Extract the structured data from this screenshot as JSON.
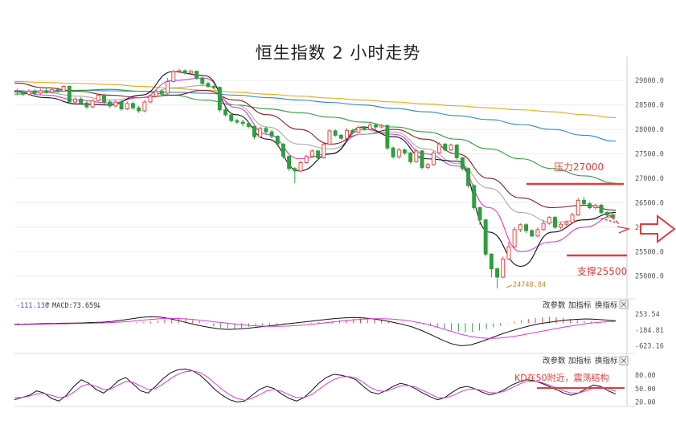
{
  "title": "恒生指数 2 小时走势",
  "chart_data": {
    "type": "candlestick",
    "title": "恒生指数 2 小时走势",
    "main_axis": {
      "ylim": [
        24700,
        29250
      ],
      "ticks": [
        "29000.0",
        "28500.0",
        "28000.0",
        "27500.0",
        "27000.0",
        "26500.0",
        "26000.0",
        "25500.0",
        "25000.0"
      ]
    },
    "candles": [
      [
        28780,
        28760,
        28830,
        28700
      ],
      [
        28760,
        28720,
        28800,
        28680
      ],
      [
        28720,
        28780,
        28820,
        28690
      ],
      [
        28780,
        28740,
        28820,
        28700
      ],
      [
        28740,
        28790,
        28830,
        28710
      ],
      [
        28790,
        28760,
        28840,
        28730
      ],
      [
        28760,
        28810,
        28850,
        28740
      ],
      [
        28810,
        28780,
        28860,
        28750
      ],
      [
        28780,
        28880,
        28900,
        28760
      ],
      [
        28880,
        28560,
        28900,
        28520
      ],
      [
        28560,
        28620,
        28660,
        28500
      ],
      [
        28620,
        28540,
        28660,
        28500
      ],
      [
        28540,
        28460,
        28580,
        28420
      ],
      [
        28460,
        28590,
        28620,
        28430
      ],
      [
        28590,
        28700,
        28730,
        28570
      ],
      [
        28700,
        28560,
        28730,
        28520
      ],
      [
        28560,
        28480,
        28600,
        28440
      ],
      [
        28480,
        28560,
        28600,
        28450
      ],
      [
        28560,
        28420,
        28600,
        28380
      ],
      [
        28420,
        28530,
        28570,
        28390
      ],
      [
        28530,
        28440,
        28570,
        28400
      ],
      [
        28440,
        28380,
        28480,
        28340
      ],
      [
        28380,
        28560,
        28600,
        28350
      ],
      [
        28560,
        28680,
        28720,
        28540
      ],
      [
        28680,
        28780,
        28820,
        28660
      ],
      [
        28780,
        28740,
        28820,
        28700
      ],
      [
        28740,
        28980,
        29050,
        28720
      ],
      [
        28980,
        29180,
        29220,
        28960
      ],
      [
        29180,
        29200,
        29240,
        29150
      ],
      [
        29200,
        29150,
        29230,
        29120
      ],
      [
        29150,
        29190,
        29220,
        29120
      ],
      [
        29190,
        29050,
        29200,
        29020
      ],
      [
        29050,
        28940,
        29080,
        28900
      ],
      [
        28940,
        28880,
        28980,
        28850
      ],
      [
        28880,
        28860,
        28920,
        28820
      ],
      [
        28860,
        28400,
        28880,
        28350
      ],
      [
        28400,
        28300,
        28440,
        28260
      ],
      [
        28300,
        28180,
        28340,
        28140
      ],
      [
        28180,
        28150,
        28220,
        28110
      ],
      [
        28150,
        28120,
        28200,
        28060
      ],
      [
        28120,
        28060,
        28160,
        28020
      ],
      [
        28060,
        27850,
        28080,
        27800
      ],
      [
        27850,
        28020,
        28060,
        27820
      ],
      [
        28020,
        27950,
        28060,
        27910
      ],
      [
        27950,
        27860,
        27990,
        27820
      ],
      [
        27860,
        27700,
        27880,
        27650
      ],
      [
        27700,
        27450,
        27720,
        27400
      ],
      [
        27450,
        27200,
        27470,
        27150
      ],
      [
        27200,
        27150,
        27230,
        26900
      ],
      [
        27150,
        27320,
        27360,
        27120
      ],
      [
        27320,
        27450,
        27480,
        27300
      ],
      [
        27450,
        27560,
        27590,
        27430
      ],
      [
        27560,
        27420,
        27580,
        27380
      ],
      [
        27420,
        27700,
        27740,
        27400
      ],
      [
        27700,
        27970,
        28000,
        27680
      ],
      [
        27970,
        27880,
        28000,
        27850
      ],
      [
        27880,
        27820,
        27910,
        27780
      ],
      [
        27820,
        27980,
        28020,
        27800
      ],
      [
        27980,
        27940,
        28020,
        27900
      ],
      [
        27940,
        28040,
        28080,
        27920
      ],
      [
        28040,
        28000,
        28070,
        27970
      ],
      [
        28000,
        28090,
        28130,
        27980
      ],
      [
        28090,
        28050,
        28120,
        28010
      ],
      [
        28050,
        28080,
        28110,
        28020
      ],
      [
        28080,
        27620,
        28100,
        27580
      ],
      [
        27620,
        27440,
        27650,
        27400
      ],
      [
        27440,
        27580,
        27620,
        27400
      ],
      [
        27580,
        27520,
        27610,
        27480
      ],
      [
        27520,
        27340,
        27540,
        27300
      ],
      [
        27340,
        27560,
        27600,
        27320
      ],
      [
        27560,
        27220,
        27580,
        27180
      ],
      [
        27220,
        27280,
        27320,
        27180
      ],
      [
        27280,
        27520,
        27560,
        27260
      ],
      [
        27520,
        27700,
        27740,
        27500
      ],
      [
        27700,
        27580,
        27720,
        27550
      ],
      [
        27580,
        27680,
        27710,
        27560
      ],
      [
        27680,
        27420,
        27700,
        27380
      ],
      [
        27420,
        27200,
        27440,
        27160
      ],
      [
        27200,
        26850,
        27220,
        26800
      ],
      [
        26850,
        26400,
        26880,
        26350
      ],
      [
        26400,
        26150,
        26420,
        26050
      ],
      [
        26150,
        25450,
        26170,
        25400
      ],
      [
        25450,
        25150,
        25470,
        24980
      ],
      [
        25150,
        24980,
        25170,
        24748
      ],
      [
        24980,
        25350,
        25400,
        24960
      ],
      [
        25350,
        25600,
        25700,
        25330
      ],
      [
        25600,
        25950,
        26000,
        25570
      ],
      [
        25950,
        26050,
        26080,
        25900
      ],
      [
        26050,
        25930,
        26080,
        25880
      ],
      [
        25930,
        25820,
        25960,
        25800
      ],
      [
        25820,
        25950,
        26000,
        25790
      ],
      [
        25950,
        26080,
        26150,
        25930
      ],
      [
        26080,
        26200,
        26230,
        26050
      ],
      [
        26200,
        26000,
        26230,
        25970
      ],
      [
        26000,
        26060,
        26100,
        25960
      ],
      [
        26060,
        26100,
        26140,
        26020
      ],
      [
        26100,
        26250,
        26300,
        26080
      ],
      [
        26250,
        26550,
        26600,
        26230
      ],
      [
        26550,
        26480,
        26620,
        26440
      ],
      [
        26480,
        26400,
        26520,
        26370
      ],
      [
        26400,
        26450,
        26480,
        26360
      ],
      [
        26450,
        26300,
        26480,
        26260
      ],
      [
        26300,
        26250,
        26330,
        26200
      ],
      [
        26250,
        26200,
        26290,
        26160
      ]
    ],
    "ma_lines": [
      {
        "name": "MA-yellow",
        "color": "#e8a816",
        "values": [
          28980,
          28960,
          28940,
          28920,
          28880,
          28840,
          28800,
          28760,
          28720,
          28680,
          28640,
          28600,
          28560,
          28520,
          28480,
          28440,
          28400,
          28360,
          28300,
          28240
        ]
      },
      {
        "name": "MA-blue",
        "color": "#2e86de",
        "values": [
          28780,
          28790,
          28800,
          28790,
          28780,
          28760,
          28740,
          28700,
          28650,
          28600,
          28550,
          28500,
          28430,
          28360,
          28280,
          28200,
          28100,
          28000,
          27880,
          27760
        ]
      },
      {
        "name": "MA-green",
        "color": "#2e9e3e",
        "values": [
          28720,
          28760,
          28800,
          28820,
          28780,
          28700,
          28600,
          28500,
          28420,
          28340,
          28250,
          28150,
          28050,
          27950,
          27800,
          27600,
          27400,
          27200,
          27050,
          26900
        ]
      },
      {
        "name": "MA-darkred",
        "color": "#8b1a1a",
        "values": [
          28950,
          28850,
          28780,
          28700,
          28650,
          28700,
          28800,
          28600,
          28300,
          28000,
          27700,
          27900,
          28000,
          27800,
          27500,
          27000,
          26600,
          26400,
          26450,
          26350
        ]
      },
      {
        "name": "MA-gray",
        "color": "#aaaaaa",
        "values": [
          28800,
          28750,
          28680,
          28600,
          28650,
          28850,
          28900,
          28500,
          28050,
          27700,
          27600,
          27900,
          27950,
          27600,
          27300,
          26800,
          26300,
          26100,
          26150,
          26200
        ]
      },
      {
        "name": "MA-magenta",
        "color": "#d83bd8",
        "values": [
          28790,
          28700,
          28600,
          28540,
          28650,
          29000,
          29050,
          28450,
          27900,
          27400,
          27500,
          28000,
          27900,
          27500,
          27250,
          26400,
          25500,
          25700,
          26000,
          26250
        ]
      },
      {
        "name": "MA-black",
        "color": "#111111",
        "values": [
          28770,
          28650,
          28520,
          28500,
          28700,
          29180,
          29100,
          28300,
          27800,
          27150,
          27500,
          28050,
          27850,
          27400,
          27350,
          25900,
          25200,
          25900,
          26150,
          26300
        ]
      }
    ],
    "annotations": {
      "resistance_label": "压力27000",
      "resistance_value": 27000,
      "support_label": "支撑25500",
      "support_value": 25500,
      "low_label": "24748.84",
      "low_value": 24748.84,
      "kd_note": "KD在50附近，震荡结构"
    },
    "macd": {
      "header_left": "-111.130",
      "header_mid": "MACD:73.659",
      "ticks": [
        "253.54",
        "-184.81",
        "-623.16"
      ],
      "ylim": [
        -700,
        320
      ],
      "hist": [
        -60,
        -50,
        -40,
        -30,
        -20,
        -20,
        -10,
        0,
        10,
        20,
        10,
        0,
        -10,
        -10,
        0,
        10,
        20,
        30,
        40,
        50,
        80,
        110,
        140,
        160,
        150,
        120,
        60,
        -20,
        -80,
        -120,
        -140,
        -150,
        -130,
        -100,
        -80,
        -60,
        -50,
        -40,
        -30,
        -20,
        -10,
        10,
        20,
        30,
        40,
        60,
        80,
        100,
        120,
        130,
        120,
        100,
        80,
        60,
        40,
        20,
        0,
        -20,
        -40,
        -80,
        -120,
        -160,
        -200,
        -230,
        -250,
        -240,
        -200,
        -160,
        -110,
        -60,
        -10,
        40,
        80,
        120,
        150,
        170,
        180,
        170,
        150,
        120,
        90,
        70,
        50,
        30,
        20,
        10
      ],
      "dif": [
        -30,
        -25,
        -20,
        -10,
        -5,
        0,
        5,
        10,
        20,
        30,
        50,
        80,
        120,
        160,
        180,
        170,
        130,
        70,
        0,
        -60,
        -110,
        -150,
        -170,
        -160,
        -140,
        -110,
        -80,
        -50,
        -20,
        10,
        40,
        70,
        100,
        130,
        150,
        160,
        150,
        120,
        80,
        30,
        -30,
        -100,
        -200,
        -320,
        -450,
        -560,
        -620,
        -600,
        -520,
        -420,
        -320,
        -230,
        -150,
        -80,
        -20,
        20,
        60,
        90,
        110,
        120,
        110,
        90,
        70
      ],
      "dea": [
        -40,
        -35,
        -30,
        -25,
        -20,
        -15,
        -10,
        -5,
        0,
        10,
        20,
        35,
        55,
        80,
        105,
        125,
        135,
        130,
        115,
        90,
        60,
        30,
        0,
        -30,
        -55,
        -75,
        -85,
        -85,
        -80,
        -65,
        -45,
        -20,
        10,
        40,
        70,
        95,
        115,
        125,
        125,
        115,
        90,
        55,
        5,
        -60,
        -140,
        -220,
        -300,
        -360,
        -400,
        -420,
        -410,
        -380,
        -340,
        -290,
        -240,
        -190,
        -140,
        -90,
        -50,
        -10,
        20,
        40,
        55
      ]
    },
    "kd": {
      "ticks": [
        "80.00",
        "50.00",
        "20.00"
      ],
      "ylim": [
        10,
        100
      ],
      "k": [
        25,
        30,
        35,
        45,
        40,
        28,
        22,
        35,
        55,
        70,
        62,
        48,
        40,
        52,
        68,
        75,
        60,
        45,
        40,
        55,
        72,
        85,
        92,
        94,
        90,
        80,
        65,
        48,
        35,
        25,
        20,
        22,
        35,
        48,
        55,
        50,
        38,
        28,
        22,
        30,
        45,
        62,
        75,
        82,
        80,
        76,
        70,
        55,
        42,
        38,
        45,
        55,
        62,
        58,
        50,
        40,
        32,
        25,
        30,
        42,
        52,
        55,
        50,
        42,
        36,
        40,
        48,
        58,
        65,
        70,
        68,
        62,
        55,
        48,
        40,
        35,
        40,
        50,
        58,
        55,
        45,
        38
      ],
      "d": [
        30,
        30,
        33,
        38,
        39,
        35,
        30,
        32,
        42,
        55,
        60,
        55,
        48,
        49,
        58,
        66,
        64,
        56,
        48,
        50,
        60,
        72,
        82,
        88,
        90,
        86,
        76,
        62,
        48,
        36,
        28,
        24,
        28,
        36,
        45,
        48,
        44,
        36,
        30,
        30,
        36,
        48,
        60,
        70,
        76,
        77,
        74,
        64,
        52,
        45,
        44,
        50,
        56,
        57,
        54,
        46,
        38,
        30,
        29,
        34,
        42,
        48,
        49,
        46,
        41,
        40,
        44,
        52,
        60,
        66,
        67,
        64,
        58,
        52,
        45,
        40,
        40,
        45,
        52,
        54,
        50,
        44
      ]
    }
  },
  "toolbar": {
    "change_params": "改参数",
    "add_indicator": "加指标",
    "switch_indicator": "换指标",
    "close_icon": "close-icon"
  },
  "colors": {
    "up": "#e84545",
    "down": "#2e9e3e",
    "annotation": "#e33b3b",
    "grid": "#ececec"
  }
}
